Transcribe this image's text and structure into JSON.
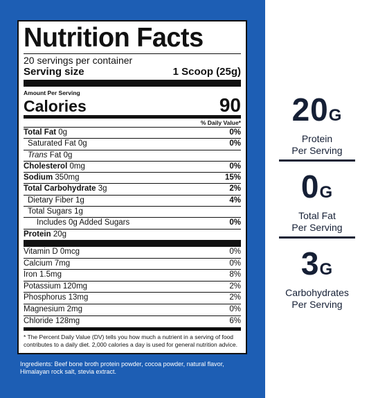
{
  "label": {
    "title": "Nutrition Facts",
    "servings_per_container": "20 servings per container",
    "serving_size_label": "Serving size",
    "serving_size_value": "1 Scoop (25g)",
    "amount_per_serving": "Amount Per Serving",
    "calories_label": "Calories",
    "calories_value": "90",
    "daily_value_header": "% Daily Value*",
    "nutrients": [
      {
        "name": "Total Fat",
        "amount": "0g",
        "dv": "0%"
      },
      {
        "name": "Saturated Fat",
        "amount": "0g",
        "dv": "0%"
      },
      {
        "name": "Trans",
        "suffix": "Fat",
        "amount": "0g",
        "dv": ""
      },
      {
        "name": "Cholesterol",
        "amount": "0mg",
        "dv": "0%"
      },
      {
        "name": "Sodium",
        "amount": "350mg",
        "dv": "15%"
      },
      {
        "name": "Total Carbohydrate",
        "amount": "3g",
        "dv": "2%"
      },
      {
        "name": "Dietary Fiber",
        "amount": "1g",
        "dv": "4%"
      },
      {
        "name": "Total Sugars",
        "amount": "1g",
        "dv": ""
      },
      {
        "name": "Includes 0g Added Sugars",
        "amount": "",
        "dv": "0%"
      },
      {
        "name": "Protein",
        "amount": "20g",
        "dv": ""
      }
    ],
    "vitamins": [
      {
        "name": "Vitamin D",
        "amount": "0mcg",
        "dv": "0%"
      },
      {
        "name": "Calcium",
        "amount": "7mg",
        "dv": "0%"
      },
      {
        "name": "Iron",
        "amount": "1.5mg",
        "dv": "8%"
      },
      {
        "name": "Potassium",
        "amount": "120mg",
        "dv": "2%"
      },
      {
        "name": "Phosphorus",
        "amount": "13mg",
        "dv": "2%"
      },
      {
        "name": "Magnesium",
        "amount": "2mg",
        "dv": "0%"
      },
      {
        "name": "Chloride",
        "amount": "128mg",
        "dv": "6%"
      }
    ],
    "footnote": "* The Percent Daily Value (DV) tells you how much a nutrient in a serving of food contributes to a daily diet. 2,000 calories a day is used for general nutrition advice."
  },
  "ingredients": "Ingredients: Beef bone broth protein powder, cocoa powder, natural flavor, Himalayan rock salt, stevia extract.",
  "highlights": [
    {
      "value": "20",
      "unit": "G",
      "line1": "Protein",
      "line2": "Per Serving"
    },
    {
      "value": "0",
      "unit": "G",
      "line1": "Total Fat",
      "line2": "Per Serving"
    },
    {
      "value": "3",
      "unit": "G",
      "line1": "Carbohydrates",
      "line2": "Per Serving"
    }
  ],
  "colors": {
    "panel_blue": "#1d5eb4",
    "stat_navy": "#151f35"
  }
}
